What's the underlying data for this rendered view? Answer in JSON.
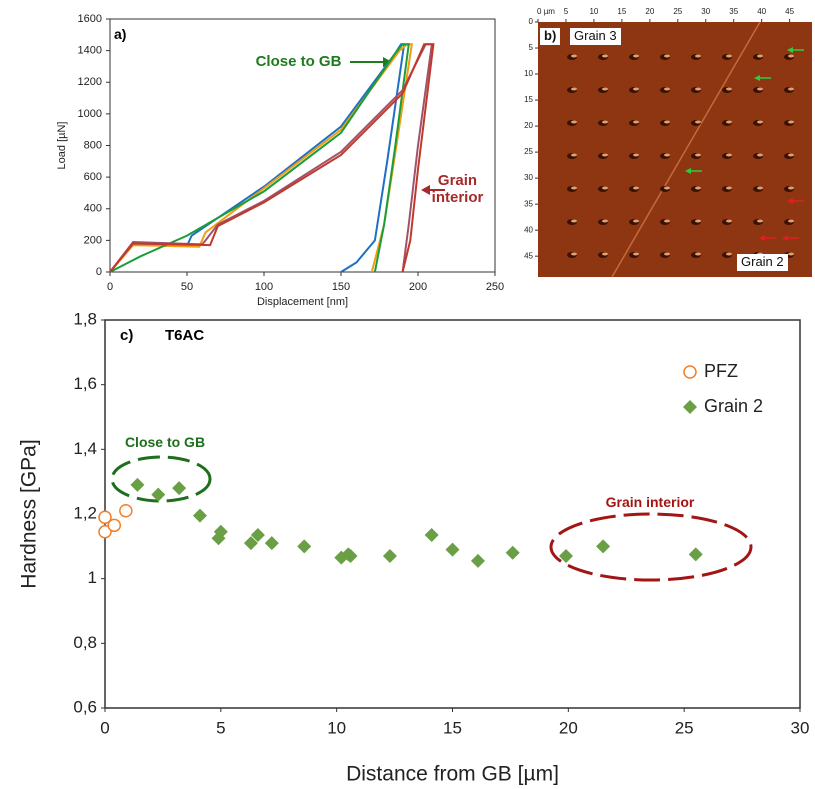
{
  "chart_data": [
    {
      "type": "line",
      "panel_label": "a)",
      "x_label": "Displacement [nm]",
      "y_label": "Load [µN]",
      "annotations": [
        "Close to GB",
        "Grain interior"
      ],
      "xlim": [
        0,
        250
      ],
      "ylim": [
        0,
        1600
      ],
      "xticks": [
        0,
        50,
        100,
        150,
        200,
        250
      ],
      "yticks": [
        0,
        200,
        400,
        600,
        800,
        1000,
        1200,
        1400,
        1600
      ],
      "series": [
        {
          "color": "#1f6fc5",
          "x": [
            0,
            15,
            50,
            53,
            100,
            150,
            185,
            189,
            191,
            180,
            172,
            160,
            150
          ],
          "values": [
            0,
            180,
            165,
            230,
            540,
            920,
            1380,
            1440,
            1440,
            700,
            200,
            60,
            0
          ]
        },
        {
          "color": "#f39c12",
          "x": [
            0,
            15,
            58,
            62,
            100,
            150,
            188,
            193,
            196,
            186,
            178,
            170
          ],
          "values": [
            0,
            170,
            160,
            250,
            530,
            900,
            1400,
            1440,
            1440,
            800,
            300,
            0
          ]
        },
        {
          "color": "#1a9e3a",
          "x": [
            0,
            20,
            50,
            100,
            150,
            185,
            190,
            194,
            185,
            178,
            172
          ],
          "values": [
            0,
            100,
            230,
            510,
            880,
            1380,
            1440,
            1440,
            780,
            300,
            0
          ]
        },
        {
          "color": "#a0526a",
          "x": [
            0,
            15,
            60,
            70,
            100,
            150,
            190,
            205,
            209,
            200,
            194,
            190
          ],
          "values": [
            0,
            190,
            175,
            300,
            450,
            760,
            1150,
            1440,
            1440,
            800,
            300,
            0
          ]
        },
        {
          "color": "#c0392b",
          "x": [
            0,
            15,
            65,
            70,
            100,
            150,
            190,
            204,
            210,
            200,
            195,
            190
          ],
          "values": [
            0,
            180,
            170,
            290,
            440,
            740,
            1130,
            1440,
            1440,
            650,
            200,
            0
          ]
        }
      ]
    },
    {
      "type": "image",
      "panel_label": "b)",
      "annotations": [
        "Grain 3",
        "Grain 2"
      ],
      "xlim": [
        0,
        49
      ],
      "ylim": [
        0,
        49
      ],
      "xticks": [
        {
          "value": 0,
          "label": "0 µm"
        },
        5,
        10,
        15,
        20,
        25,
        30,
        35,
        40,
        45
      ],
      "yticks": [
        0,
        5,
        10,
        15,
        20,
        25,
        30,
        35,
        40,
        45
      ]
    },
    {
      "type": "scatter",
      "panel_label": "c)",
      "title": "T6AC",
      "x_label": "Distance from GB [µm]",
      "y_label": "Hardness [GPa]",
      "annotations": [
        "Close to GB",
        "Grain interior"
      ],
      "legend": "upper right",
      "xlim": [
        0,
        30
      ],
      "ylim": [
        0.6,
        1.8
      ],
      "xticks": [
        0,
        5,
        10,
        15,
        20,
        25,
        30
      ],
      "yticks": [
        {
          "value": 0.6,
          "label": "0,6"
        },
        {
          "value": 0.8,
          "label": "0,8"
        },
        1,
        {
          "value": 1.2,
          "label": "1,2"
        },
        {
          "value": 1.4,
          "label": "1,4"
        },
        {
          "value": 1.6,
          "label": "1,6"
        },
        {
          "value": 1.8,
          "label": "1,8"
        }
      ],
      "series": [
        {
          "name": "PFZ",
          "color": "#f07f2a",
          "marker": "circle-open",
          "x": [
            0,
            0,
            0.4,
            0.9
          ],
          "values": [
            1.19,
            1.145,
            1.165,
            1.21
          ]
        },
        {
          "name": "Grain 2",
          "color": "#6a9f45",
          "marker": "diamond",
          "x": [
            1.4,
            2.3,
            3.2,
            4.1,
            4.9,
            5.0,
            6.3,
            6.6,
            7.2,
            8.6,
            10.2,
            10.5,
            10.6,
            12.3,
            14.1,
            15.0,
            16.1,
            17.6,
            19.9,
            21.5,
            25.5
          ],
          "values": [
            1.29,
            1.26,
            1.28,
            1.195,
            1.125,
            1.145,
            1.11,
            1.135,
            1.11,
            1.1,
            1.065,
            1.075,
            1.07,
            1.07,
            1.135,
            1.09,
            1.055,
            1.08,
            1.07,
            1.1,
            1.075
          ]
        }
      ]
    }
  ]
}
